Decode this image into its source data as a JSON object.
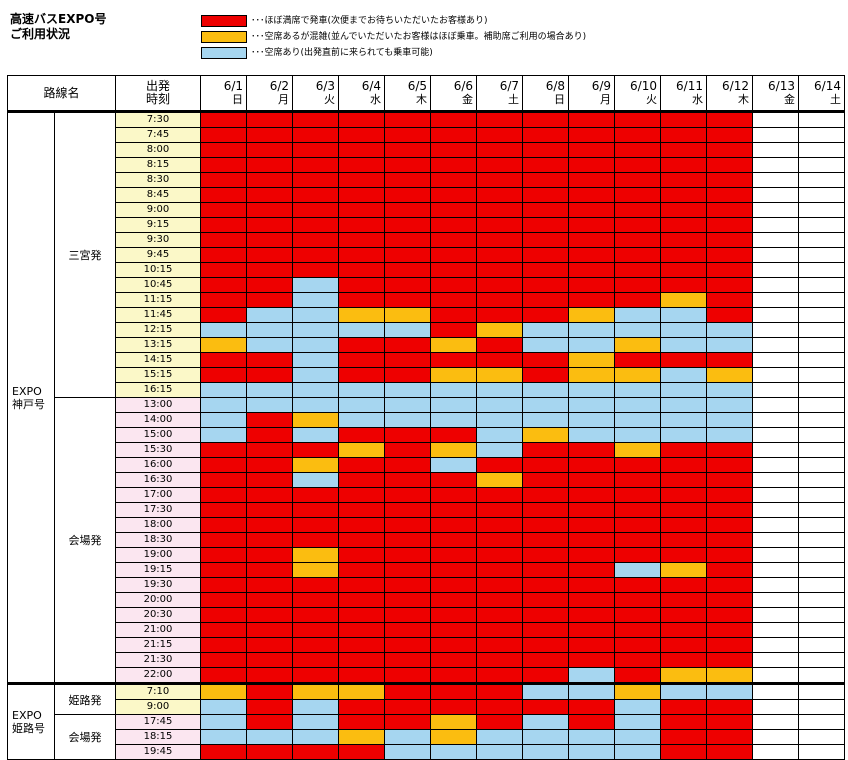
{
  "title": {
    "line1": "高速バスEXPO号",
    "line2": "ご利用状況"
  },
  "legend": [
    {
      "status": "r",
      "color": "#ee0000",
      "text": "･･･ほぼ満席で発車(次便までお待ちいただいたお客様あり)"
    },
    {
      "status": "o",
      "color": "#fbbd10",
      "text": "･･･空席あるが混雑(並んでいただいたお客様はほぼ乗車。補助席ご利用の場合あり)"
    },
    {
      "status": "b",
      "color": "#a6d6f0",
      "text": "･･･空席あり(出発直前に来られても乗車可能)"
    }
  ],
  "header": {
    "route": "路線名",
    "time_line1": "出発",
    "time_line2": "時刻",
    "dates": [
      {
        "date": "6/1",
        "day": "日"
      },
      {
        "date": "6/2",
        "day": "月"
      },
      {
        "date": "6/3",
        "day": "火"
      },
      {
        "date": "6/4",
        "day": "水"
      },
      {
        "date": "6/5",
        "day": "木"
      },
      {
        "date": "6/6",
        "day": "金"
      },
      {
        "date": "6/7",
        "day": "土"
      },
      {
        "date": "6/8",
        "day": "日"
      },
      {
        "date": "6/9",
        "day": "月"
      },
      {
        "date": "6/10",
        "day": "火"
      },
      {
        "date": "6/11",
        "day": "水"
      },
      {
        "date": "6/12",
        "day": "木"
      },
      {
        "date": "6/13",
        "day": "金"
      },
      {
        "date": "6/14",
        "day": "土"
      }
    ]
  },
  "routes": [
    {
      "line1": "EXPO",
      "line2": "神戸号",
      "sections": [
        {
          "name": "三宮発",
          "tint": "y",
          "rows": [
            {
              "time": "7:30",
              "s": "rrrrrrrrrrrrww"
            },
            {
              "time": "7:45",
              "s": "rrrrrrrrrrrrww"
            },
            {
              "time": "8:00",
              "s": "rrrrrrrrrrrrww"
            },
            {
              "time": "8:15",
              "s": "rrrrrrrrrrrrww"
            },
            {
              "time": "8:30",
              "s": "rrrrrrrrrrrrww"
            },
            {
              "time": "8:45",
              "s": "rrrrrrrrrrrrww"
            },
            {
              "time": "9:00",
              "s": "rrrrrrrrrrrrww"
            },
            {
              "time": "9:15",
              "s": "rrrrrrrrrrrrww"
            },
            {
              "time": "9:30",
              "s": "rrrrrrrrrrrrww"
            },
            {
              "time": "9:45",
              "s": "rrrrrrrrrrrrww"
            },
            {
              "time": "10:15",
              "s": "rrrrrrrrrrrrww"
            },
            {
              "time": "10:45",
              "s": "rrbrrrrrrrrrww"
            },
            {
              "time": "11:15",
              "s": "rrbrrrrrrrorww"
            },
            {
              "time": "11:45",
              "s": "rbboorrrobbrww"
            },
            {
              "time": "12:15",
              "s": "bbbbbrobbbbbww"
            },
            {
              "time": "13:15",
              "s": "obbrrorbbobbww"
            },
            {
              "time": "14:15",
              "s": "rrbrrrrrorrrww"
            },
            {
              "time": "15:15",
              "s": "rrbrroorooboww"
            },
            {
              "time": "16:15",
              "s": "bbbbbbbbbbbbww"
            }
          ]
        },
        {
          "name": "会場発",
          "tint": "p",
          "rows": [
            {
              "time": "13:00",
              "s": "bbbbbbbbbbbbww"
            },
            {
              "time": "14:00",
              "s": "brobbbbbbbbbww"
            },
            {
              "time": "15:00",
              "s": "brbrrrbobbbbww"
            },
            {
              "time": "15:30",
              "s": "rrrorobrrorrww"
            },
            {
              "time": "16:00",
              "s": "rrorrbrrrrrrww"
            },
            {
              "time": "16:30",
              "s": "rrbrrrorrrrrww"
            },
            {
              "time": "17:00",
              "s": "rrrrrrrrrrrrww"
            },
            {
              "time": "17:30",
              "s": "rrrrrrrrrrrrww"
            },
            {
              "time": "18:00",
              "s": "rrrrrrrrrrrrww"
            },
            {
              "time": "18:30",
              "s": "rrrrrrrrrrrrww"
            },
            {
              "time": "19:00",
              "s": "rrorrrrrrrrrww"
            },
            {
              "time": "19:15",
              "s": "rrorrrrrrborww"
            },
            {
              "time": "19:30",
              "s": "rrrrrrrrrrrrww"
            },
            {
              "time": "20:00",
              "s": "rrrrrrrrrrrrww"
            },
            {
              "time": "20:30",
              "s": "rrrrrrrrrrrrww"
            },
            {
              "time": "21:00",
              "s": "rrrrrrrrrrrrww"
            },
            {
              "time": "21:15",
              "s": "rrrrrrrrrrrrww"
            },
            {
              "time": "21:30",
              "s": "rrrrrrrrrrrrww"
            },
            {
              "time": "22:00",
              "s": "rrrrrrrrbrooww"
            }
          ]
        }
      ]
    },
    {
      "line1": "EXPO",
      "line2": "姫路号",
      "sections": [
        {
          "name": "姫路発",
          "tint": "y",
          "rows": [
            {
              "time": "7:10",
              "s": "oroorrrbbobbww"
            },
            {
              "time": "9:00",
              "s": "brbrrrrrrbrrww"
            }
          ]
        },
        {
          "name": "会場発",
          "tint": "p",
          "rows": [
            {
              "time": "17:45",
              "s": "brbrrorbrbrrww"
            },
            {
              "time": "18:15",
              "s": "bbbobobbbbrrww"
            },
            {
              "time": "19:45",
              "s": "rrrrbbbbbbrrww"
            }
          ]
        }
      ]
    }
  ]
}
